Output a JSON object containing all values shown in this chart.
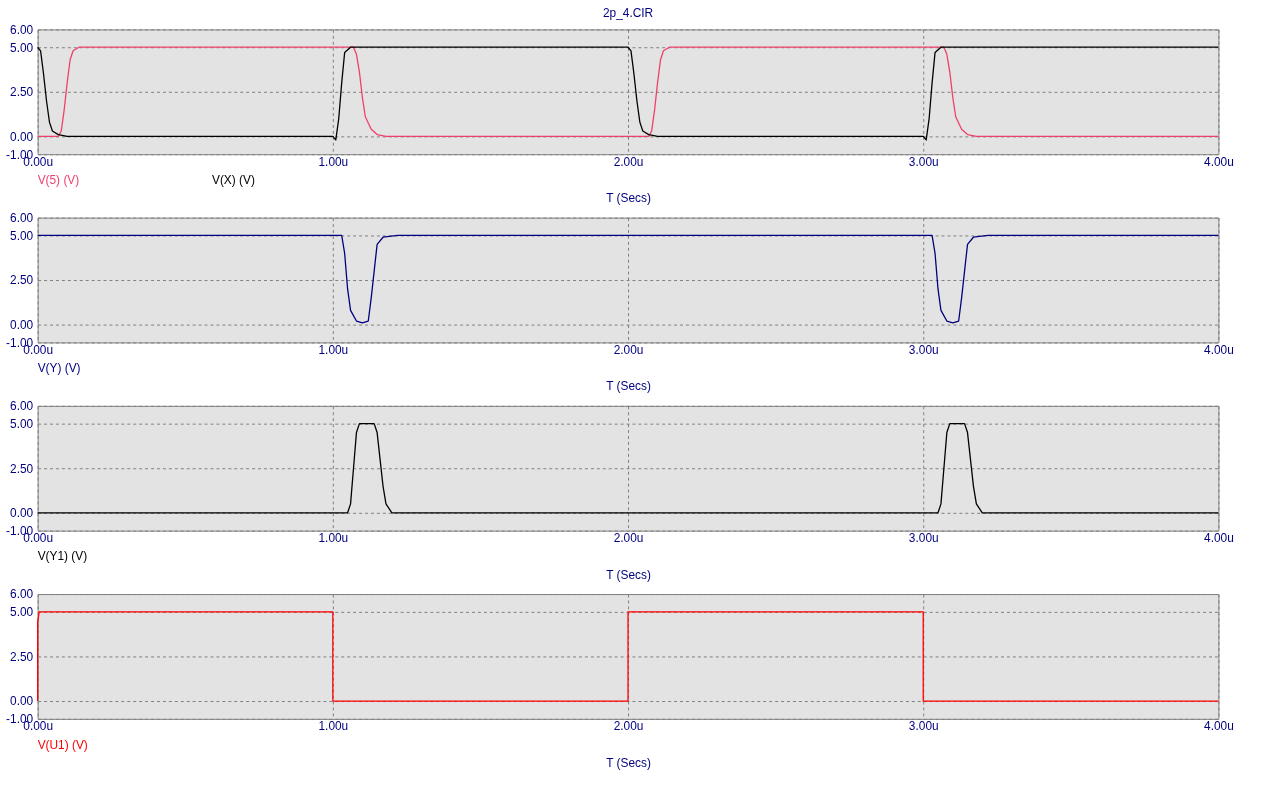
{
  "chart_data": [
    {
      "type": "line",
      "title": "2p_4.CIR",
      "xlabel": "T (Secs)",
      "xlim": [
        0,
        4
      ],
      "xticks": [
        {
          "value": 0,
          "label": "0.00u"
        },
        {
          "value": 1,
          "label": "1.00u"
        },
        {
          "value": 2,
          "label": "2.00u"
        },
        {
          "value": 3,
          "label": "3.00u"
        },
        {
          "value": 4,
          "label": "4.00u"
        }
      ],
      "ylim": [
        -1,
        6
      ],
      "yticks": [
        {
          "value": -1,
          "label": "-1.00"
        },
        {
          "value": 0,
          "label": "0.00"
        },
        {
          "value": 2.5,
          "label": "2.50"
        },
        {
          "value": 5,
          "label": "5.00"
        },
        {
          "value": 6,
          "label": "6.00"
        }
      ],
      "grid": true,
      "legend": "bottom left",
      "series": [
        {
          "name": "V(5) (V)",
          "color": "#f0406a",
          "x": [
            0,
            0.07,
            0.08,
            0.09,
            0.1,
            0.11,
            0.12,
            0.14,
            1.07,
            1.08,
            1.09,
            1.1,
            1.11,
            1.13,
            1.15,
            1.18,
            2.07,
            2.08,
            2.09,
            2.1,
            2.11,
            2.12,
            2.14,
            3.07,
            3.08,
            3.09,
            3.1,
            3.11,
            3.13,
            3.15,
            3.18,
            4
          ],
          "values": [
            0,
            0,
            0.3,
            1.5,
            3,
            4.3,
            4.8,
            5,
            5,
            4.6,
            3.6,
            2.2,
            1.1,
            0.4,
            0.1,
            0,
            0,
            0.3,
            1.5,
            3,
            4.3,
            4.8,
            5,
            5,
            4.6,
            3.6,
            2.2,
            1.1,
            0.4,
            0.1,
            0,
            0
          ]
        },
        {
          "name": "V(X) (V)",
          "color": "#000000",
          "x": [
            0,
            0.01,
            0.02,
            0.03,
            0.04,
            0.05,
            0.07,
            0.1,
            1.0,
            1.01,
            1.02,
            1.03,
            1.04,
            1.06,
            2.0,
            2.01,
            2.02,
            2.03,
            2.04,
            2.05,
            2.07,
            2.1,
            3.0,
            3.01,
            3.02,
            3.03,
            3.04,
            3.06,
            4
          ],
          "values": [
            5,
            4.8,
            3.5,
            2,
            0.8,
            0.3,
            0.1,
            0,
            0,
            -0.2,
            1,
            3,
            4.7,
            5,
            5,
            4.8,
            3.5,
            2,
            0.8,
            0.3,
            0.1,
            0,
            0,
            -0.2,
            1,
            3,
            4.7,
            5,
            5
          ]
        }
      ]
    },
    {
      "type": "line",
      "xlabel": "T (Secs)",
      "xlim": [
        0,
        4
      ],
      "xticks": [
        {
          "value": 0,
          "label": "0.00u"
        },
        {
          "value": 1,
          "label": "1.00u"
        },
        {
          "value": 2,
          "label": "2.00u"
        },
        {
          "value": 3,
          "label": "3.00u"
        },
        {
          "value": 4,
          "label": "4.00u"
        }
      ],
      "ylim": [
        -1,
        6
      ],
      "yticks": [
        {
          "value": -1,
          "label": "-1.00"
        },
        {
          "value": 0,
          "label": "0.00"
        },
        {
          "value": 2.5,
          "label": "2.50"
        },
        {
          "value": 5,
          "label": "5.00"
        },
        {
          "value": 6,
          "label": "6.00"
        }
      ],
      "grid": true,
      "legend": "bottom left",
      "series": [
        {
          "name": "V(Y) (V)",
          "color": "#000080",
          "x": [
            0,
            1.03,
            1.04,
            1.05,
            1.06,
            1.08,
            1.1,
            1.12,
            1.13,
            1.14,
            1.15,
            1.17,
            1.22,
            3.03,
            3.04,
            3.05,
            3.06,
            3.08,
            3.1,
            3.12,
            3.13,
            3.14,
            3.15,
            3.17,
            3.22,
            4
          ],
          "values": [
            5,
            5,
            4,
            2,
            0.8,
            0.2,
            0.1,
            0.2,
            1.5,
            3,
            4.5,
            4.9,
            5,
            5,
            4,
            2,
            0.8,
            0.2,
            0.1,
            0.2,
            1.5,
            3,
            4.5,
            4.9,
            5,
            5
          ]
        }
      ]
    },
    {
      "type": "line",
      "xlabel": "T (Secs)",
      "xlim": [
        0,
        4
      ],
      "xticks": [
        {
          "value": 0,
          "label": "0.00u"
        },
        {
          "value": 1,
          "label": "1.00u"
        },
        {
          "value": 2,
          "label": "2.00u"
        },
        {
          "value": 3,
          "label": "3.00u"
        },
        {
          "value": 4,
          "label": "4.00u"
        }
      ],
      "ylim": [
        -1,
        6
      ],
      "yticks": [
        {
          "value": -1,
          "label": "-1.00"
        },
        {
          "value": 0,
          "label": "0.00"
        },
        {
          "value": 2.5,
          "label": "2.50"
        },
        {
          "value": 5,
          "label": "5.00"
        },
        {
          "value": 6,
          "label": "6.00"
        }
      ],
      "grid": true,
      "legend": "bottom left",
      "series": [
        {
          "name": "V(Y1) (V)",
          "color": "#000000",
          "x": [
            0,
            1.05,
            1.06,
            1.07,
            1.08,
            1.09,
            1.14,
            1.15,
            1.16,
            1.17,
            1.18,
            1.2,
            3.05,
            3.06,
            3.07,
            3.08,
            3.09,
            3.14,
            3.15,
            3.16,
            3.17,
            3.18,
            3.2,
            4
          ],
          "values": [
            0,
            0,
            0.5,
            2.5,
            4.5,
            5,
            5,
            4.5,
            3,
            1.5,
            0.5,
            0,
            0,
            0.5,
            2.5,
            4.5,
            5,
            5,
            4.5,
            3,
            1.5,
            0.5,
            0,
            0
          ]
        }
      ]
    },
    {
      "type": "line",
      "xlabel": "T (Secs)",
      "xlim": [
        0,
        4
      ],
      "xticks": [
        {
          "value": 0,
          "label": "0.00u"
        },
        {
          "value": 1,
          "label": "1.00u"
        },
        {
          "value": 2,
          "label": "2.00u"
        },
        {
          "value": 3,
          "label": "3.00u"
        },
        {
          "value": 4,
          "label": "4.00u"
        }
      ],
      "ylim": [
        -1,
        6
      ],
      "yticks": [
        {
          "value": -1,
          "label": "-1.00"
        },
        {
          "value": 0,
          "label": "0.00"
        },
        {
          "value": 2.5,
          "label": "2.50"
        },
        {
          "value": 5,
          "label": "5.00"
        },
        {
          "value": 6,
          "label": "6.00"
        }
      ],
      "grid": true,
      "legend": "bottom left",
      "series": [
        {
          "name": "V(U1) (V)",
          "color": "#ff0000",
          "x": [
            0,
            0,
            0.005,
            1.0,
            1.0,
            2.0,
            2.0,
            3.0,
            3.0,
            3.0,
            4
          ],
          "values": [
            0,
            4.4,
            5,
            5,
            0,
            0,
            5,
            5,
            2.5,
            0,
            0
          ]
        }
      ]
    }
  ]
}
